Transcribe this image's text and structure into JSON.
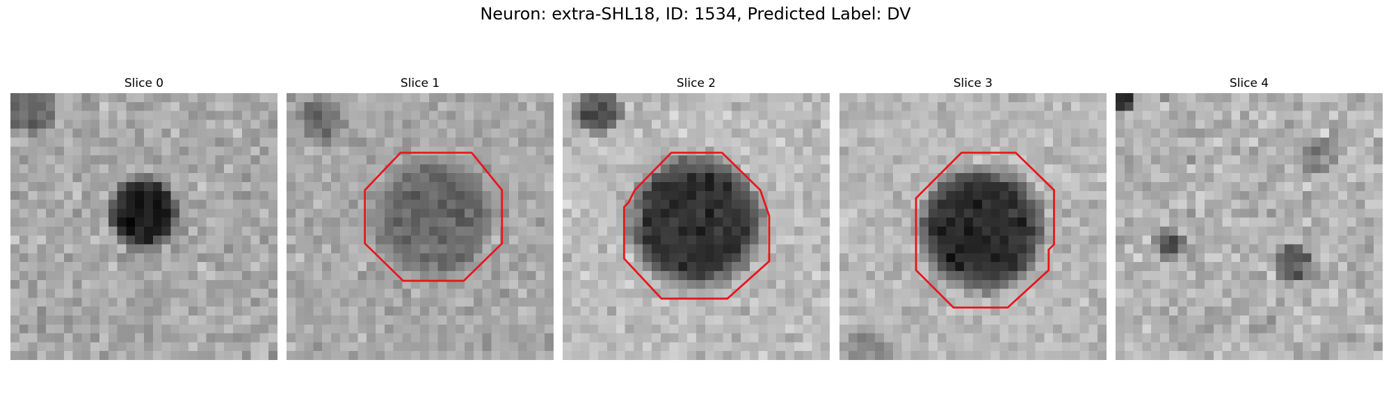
{
  "figure": {
    "title": "Neuron: extra-SHL18, ID: 1534, Predicted Label: DV"
  },
  "panels": [
    {
      "title": "Slice 0",
      "has_contour": false
    },
    {
      "title": "Slice 1",
      "has_contour": true
    },
    {
      "title": "Slice 2",
      "has_contour": true
    },
    {
      "title": "Slice 3",
      "has_contour": true
    },
    {
      "title": "Slice 4",
      "has_contour": false
    }
  ],
  "colors": {
    "contour": "#e8161b",
    "background": "#ffffff"
  }
}
